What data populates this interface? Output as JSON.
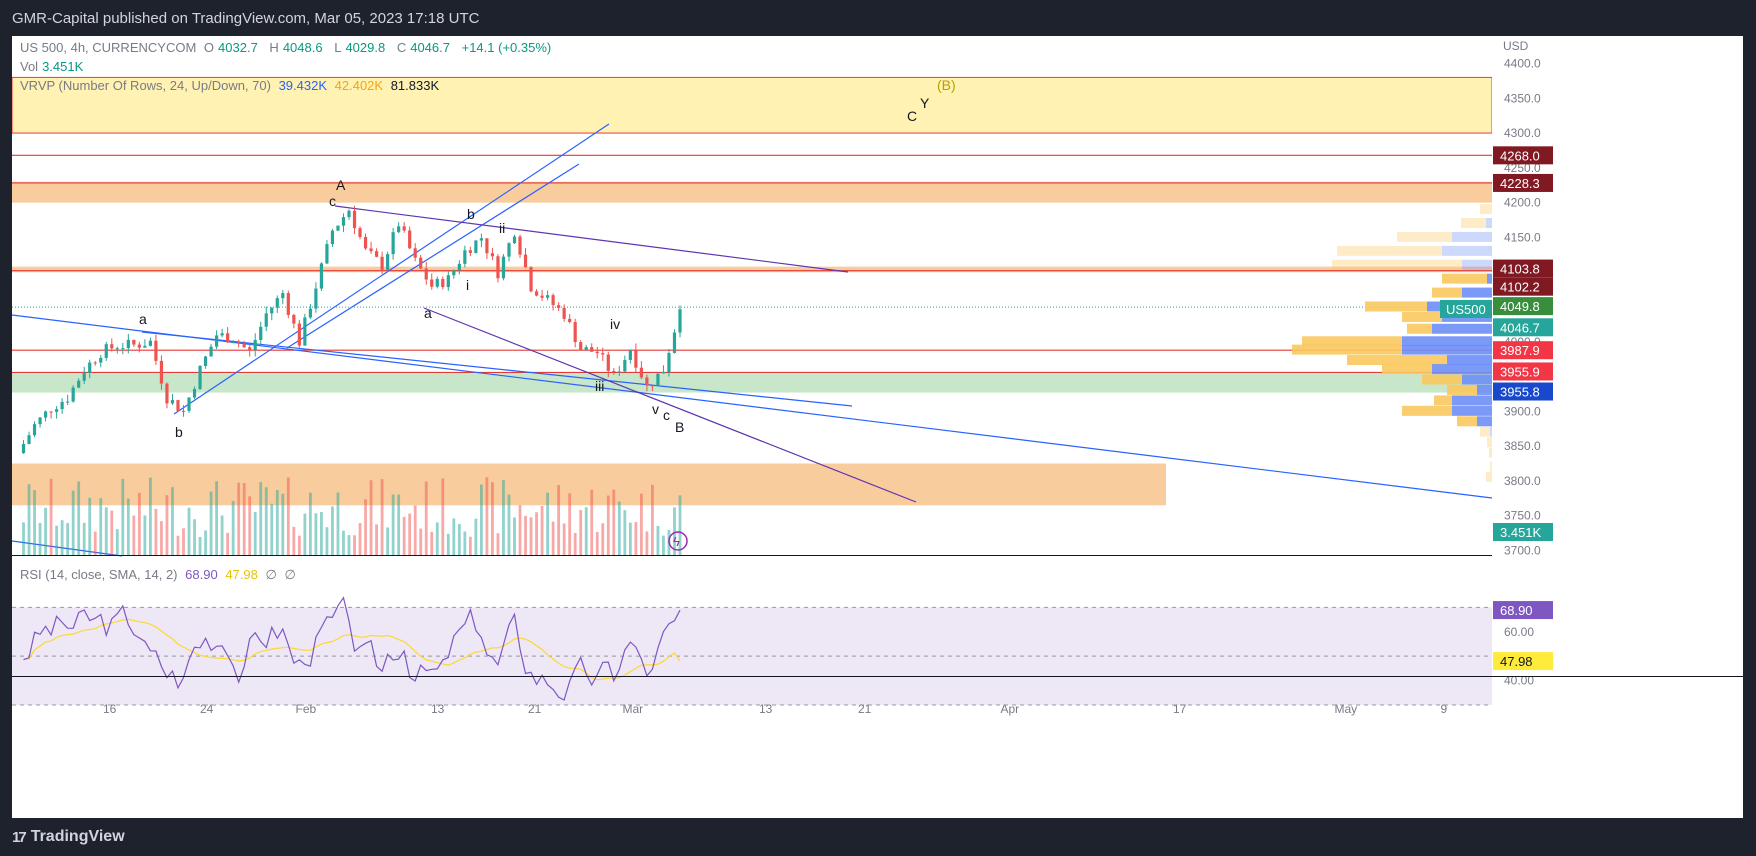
{
  "header": {
    "published": "GMR-Capital published on TradingView.com, Mar 05, 2023 17:18 UTC"
  },
  "legend": {
    "symbol": "US 500, 4h, CURRENCYCOM",
    "o_label": "O",
    "o": "4032.7",
    "h_label": "H",
    "h": "4048.6",
    "l_label": "L",
    "l": "4029.8",
    "c_label": "C",
    "c": "4046.7",
    "change": "+14.1 (+0.35%)",
    "vol_label": "Vol",
    "vol": "3.451K",
    "vrvp_label": "VRVP (Number Of Rows, 24, Up/Down, 70)",
    "vrvp_up": "39.432K",
    "vrvp_down": "42.402K",
    "vrvp_total": "81.833K",
    "rsi_label": "RSI (14, close, SMA, 14, 2)",
    "rsi_value": "68.90",
    "rsi_ma": "47.98",
    "rsi_extra1": "∅",
    "rsi_extra2": "∅"
  },
  "price_axis": {
    "currency": "USD",
    "ticks": [
      "4400.0",
      "4350.0",
      "4300.0",
      "4250.0",
      "4200.0",
      "4150.0",
      "4100.0",
      "4050.0",
      "4000.0",
      "3950.0",
      "3900.0",
      "3850.0",
      "3800.0",
      "3750.0",
      "3700.0"
    ],
    "badges": [
      {
        "value": "4268.0",
        "color": "#801922"
      },
      {
        "value": "4228.3",
        "color": "#801922"
      },
      {
        "value": "4103.8",
        "color": "#801922"
      },
      {
        "value": "4102.2",
        "color": "#801922"
      },
      {
        "value": "4049.8",
        "color": "#388e3c"
      },
      {
        "value": "4046.7",
        "color": "#26a69a"
      },
      {
        "value": "3987.9",
        "color": "#f23645"
      },
      {
        "value": "3955.9",
        "color": "#f23645"
      },
      {
        "value": "3955.8",
        "color": "#1848cc"
      },
      {
        "value": "3.451K",
        "color": "#26a69a"
      }
    ],
    "symbol_badge": "US500"
  },
  "rsi_axis": {
    "ticks": [
      "60.00",
      "40.00"
    ],
    "badges": [
      {
        "value": "68.90",
        "color": "#7e57c2"
      },
      {
        "value": "47.98",
        "color": "#ffeb3b"
      }
    ]
  },
  "time_axis": {
    "labels": [
      "16",
      "24",
      "Feb",
      "13",
      "21",
      "Mar",
      "13",
      "21",
      "Apr",
      "17",
      "May",
      "9"
    ]
  },
  "wave_labels": [
    "A",
    "c",
    "b",
    "ii",
    "i",
    "a",
    "a",
    "b",
    "iv",
    "iii",
    "v",
    "c",
    "B",
    "C",
    "Y",
    "(B)"
  ],
  "footer": {
    "brand": "TradingView"
  },
  "chart_data": {
    "type": "candlestick",
    "symbol": "US 500",
    "timeframe": "4h",
    "ylim": [
      3700,
      4400
    ],
    "close_path": [
      {
        "x": "Jan 5",
        "y": 3840
      },
      {
        "x": "Jan 6",
        "y": 3880
      },
      {
        "x": "Jan 9",
        "y": 3905
      },
      {
        "x": "Jan 10",
        "y": 3920
      },
      {
        "x": "Jan 11",
        "y": 3960
      },
      {
        "x": "Jan 12",
        "y": 3985
      },
      {
        "x": "Jan 13",
        "y": 3995
      },
      {
        "x": "Jan 17",
        "y": 3995
      },
      {
        "x": "Jan 18",
        "y": 4000
      },
      {
        "x": "Jan 19",
        "y": 3920
      },
      {
        "x": "Jan 20",
        "y": 3900
      },
      {
        "x": "Jan 23",
        "y": 3960
      },
      {
        "x": "Jan 24",
        "y": 4010
      },
      {
        "x": "Jan 25",
        "y": 4005
      },
      {
        "x": "Jan 26",
        "y": 3985
      },
      {
        "x": "Jan 27",
        "y": 4040
      },
      {
        "x": "Jan 30",
        "y": 4070
      },
      {
        "x": "Jan 31",
        "y": 4000
      },
      {
        "x": "Feb 1",
        "y": 4080
      },
      {
        "x": "Feb 2",
        "y": 4160
      },
      {
        "x": "Feb 3",
        "y": 4190
      },
      {
        "x": "Feb 6",
        "y": 4130
      },
      {
        "x": "Feb 7",
        "y": 4110
      },
      {
        "x": "Feb 8",
        "y": 4170
      },
      {
        "x": "Feb 9",
        "y": 4115
      },
      {
        "x": "Feb 10",
        "y": 4080
      },
      {
        "x": "Feb 13",
        "y": 4090
      },
      {
        "x": "Feb 14",
        "y": 4130
      },
      {
        "x": "Feb 15",
        "y": 4150
      },
      {
        "x": "Feb 16",
        "y": 4100
      },
      {
        "x": "Feb 17",
        "y": 4160
      },
      {
        "x": "Feb 21",
        "y": 4080
      },
      {
        "x": "Feb 22",
        "y": 4060
      },
      {
        "x": "Feb 23",
        "y": 4040
      },
      {
        "x": "Feb 24",
        "y": 3990
      },
      {
        "x": "Feb 27",
        "y": 3985
      },
      {
        "x": "Feb 28",
        "y": 3950
      },
      {
        "x": "Mar 1",
        "y": 3990
      },
      {
        "x": "Mar 2",
        "y": 3935
      },
      {
        "x": "Mar 3",
        "y": 3960
      },
      {
        "x": "Mar 3 late",
        "y": 4046.7
      }
    ],
    "zones": [
      {
        "from": 4300,
        "to": 4380,
        "color": "yellow"
      },
      {
        "from": 4200,
        "to": 4230,
        "color": "orange"
      },
      {
        "from": 4100,
        "to": 4108,
        "color": "orange"
      },
      {
        "from": 3927,
        "to": 3955,
        "color": "green"
      },
      {
        "from": 3765,
        "to": 3825,
        "color": "orange"
      }
    ],
    "horizontal_levels": [
      4268.0,
      4228.3,
      4102.2,
      3987.9,
      3955.9
    ],
    "rsi_ylim": [
      20,
      80
    ],
    "rsi_levels": [
      70,
      50,
      30
    ],
    "rsi_last": 68.9,
    "rsi_ma_last": 47.98
  }
}
